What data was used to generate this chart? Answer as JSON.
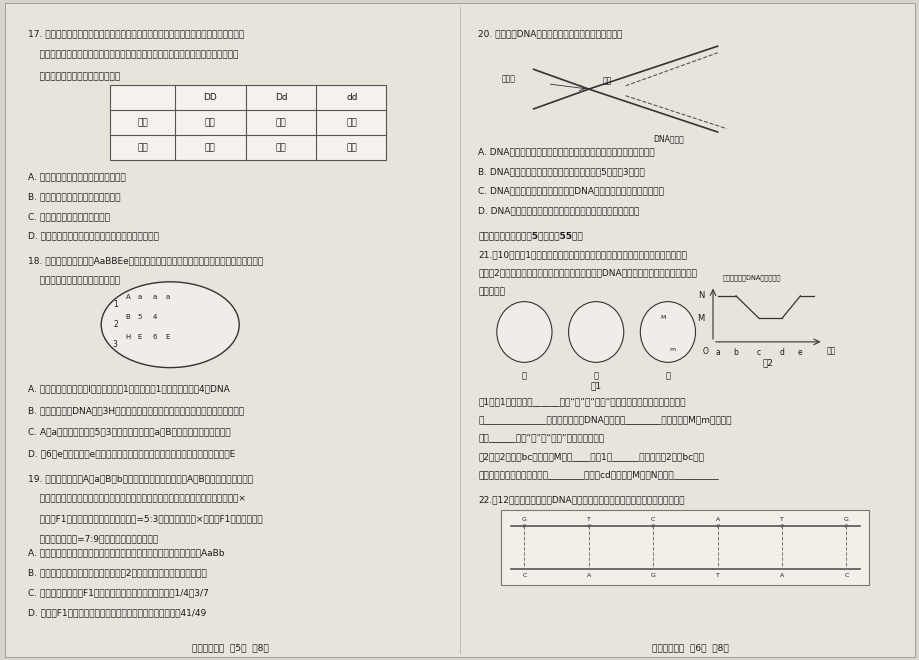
{
  "background_color": "#d8d4cc",
  "page_bg": "#e8e4dc",
  "text_color": "#1a1a1a",
  "table_line_color": "#555555",
  "font_size_small": 6.5,
  "q17_title": "17. 从性遗传是指由常染色体上基因控制的性状，在表型上受个体性别影响的现象。某种",
  "q17_line2": "    牛体表上的斑点颜色为从性遗传，各基因型与表型的关系如下表所示，在不考虑变异",
  "q17_line3": "    的情况下，下列相关叙述错误的是",
  "q17_A": "A. 斑点颜色的遗传不符合基因分离定律",
  "q17_B": "B. 褐色母牛产下的红色小牛必为雄性",
  "q17_C": "C. 红色公牛的子代雄性必为红色",
  "q17_D": "D. 若亲本均为红色，则子代雴雄个体全部表现为红色",
  "q18_title": "18. 下图表示某基因型为AaBBEe的二倍体哺乳动物体内某细胞某个分裂时期，数字和字母",
  "q18_line2": "    表示基因。下列有关叙述正确的是",
  "q18_A": "A. 若此图表示减数分裂I前期，图中有1个四分体，1对同源染色体，4个DNA",
  "q18_B": "B. 复制前对全部DNA进行3H标记，经普通培养分裂一次产生的子代细胞均含放射性",
  "q18_C": "C. A和a互为等位基因，5和3互为非等位基因，a和B的遗传符合自由组合定律",
  "q18_D": "D. 若6为e基因，则此e可能是由于交叉互换形成，正常配子中不会同时出现两个E",
  "q19_title": "19. 玉米籽粒颜色受A、a和B、b两对独立遗传的基因控制，A、B同时存在时籽粒为紫",
  "q19_line2": "    色，其他情况为白色（不考虑变异情况），研究人员进行了两组实验。实验一：紫色×",
  "q19_line3": "    白色，F1的表现型及比例为白色：紫色=5:3；实验二：紫色×紫色，F1的表现型及比",
  "q19_line4": "    例为白色：紫色=7:9。下列有关说法错误的是",
  "q19_A": "A. 籽粒的紫色和白色为一对相对性状，两组实验亲代紫株的基因型均为AaBb",
  "q19_B": "B. 实验一亲代白色个体的基因型可能有2种，子代紫色个体中没有纯合子",
  "q19_C": "C. 实验一和实验二的F1的白色个体中纯合子的比例分别为1/4和3/7",
  "q19_D": "D. 实验二F1中白色个体随机授粉，子代中白色个体的比例为41/49",
  "footer_left": "高一生物试题  笥5页  兲8页",
  "q20_title": "20. 如图表示DNA复制的过程，下列有关叙述正确的是",
  "q20_A": "A. DNA复制均在细胞核内进行，碱基互补配对原则保证了复制准确性",
  "q20_B": "B. DNA分子复制时两条子链合成的方向都是从5端向到3端延伸",
  "q20_C": "C. DNA复制过程中需要解旋酶破坍DNA双链间的氢键，使两条链解开",
  "q20_D": "D. DNA分子进行半保留复制，形成两条子链时都是连续合成的",
  "q21_header": "三、非选择题：本题共5小题，全55分。",
  "q21_title": "21.（10分）图1为某种高等动物不同时期的细胞分裂图像，字母表示染色体上的基",
  "q21_line2": "因；图2为该种动物不同时期的细胞内染色体数与核DNA含量变化关系曲线图。据图回答",
  "q21_line3": "下列问题：",
  "q21_q1": "（1）图1中三个细胞______（填“是”或“不是”）来自同一个体；甲细胞的名称",
  "q21_q1b": "是______________，图乙细胞的核DNA分子数是________；丙细胞中M和m所在的染",
  "q21_q1c": "色体______（填“是”或“不是”）同源染色体。",
  "q21_q2": "（2）图2中曲线bc段对应的M値为____，图1中______细胞处于图2中的bc段，",
  "q21_q2b": "此段还可以表示有丝分裂期的________期。在cd段比値由M变为N是由于__________",
  "q22_title": "22.（12分）如图是某链状DNA分子的局部结构示意图，请据图回答下列问题：",
  "footer_right": "高一生物试题  笥6页  兲8页",
  "table_headers": [
    "",
    "DD",
    "Dd",
    "dd"
  ],
  "table_row1": [
    "雄性",
    "褐色",
    "红色",
    "红色"
  ],
  "table_row2": [
    "雌性",
    "褐色",
    "褐色",
    "红色"
  ]
}
